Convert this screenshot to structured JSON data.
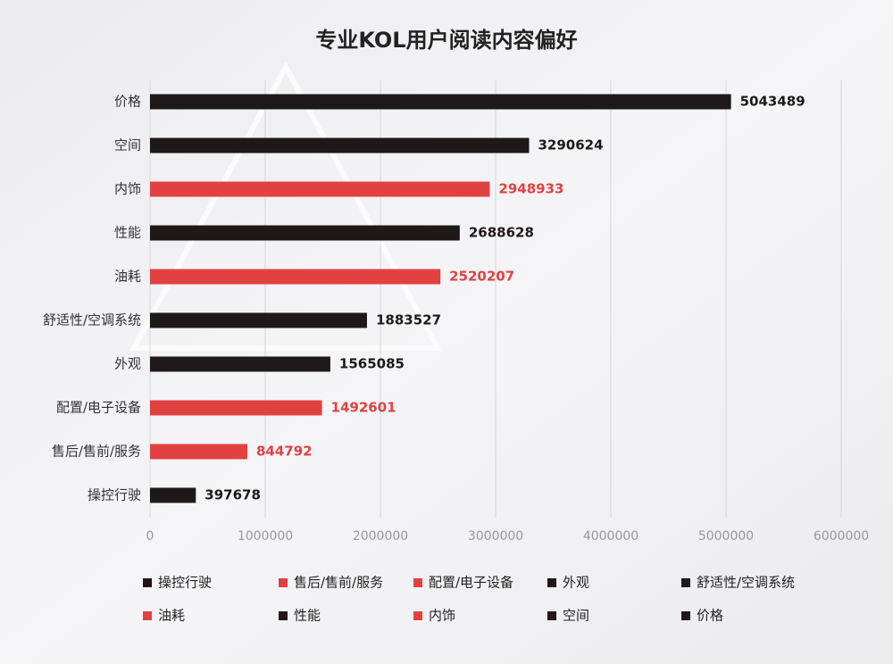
{
  "chart_data": {
    "type": "bar",
    "orientation": "horizontal",
    "title": "专业KOL用户阅读内容偏好",
    "categories": [
      "价格",
      "空间",
      "内饰",
      "性能",
      "油耗",
      "舒适性/空调系统",
      "外观",
      "配置/电子设备",
      "售后/售前/服务",
      "操控行驶"
    ],
    "values": [
      5043489,
      3290624,
      2948933,
      2688628,
      2520207,
      1883527,
      1565085,
      1492601,
      844792,
      397678
    ],
    "colors": [
      "#1e1818",
      "#1e1818",
      "#e24141",
      "#1e1818",
      "#e24141",
      "#1e1818",
      "#1e1818",
      "#e24141",
      "#e24141",
      "#1e1818"
    ],
    "xlim": [
      0,
      6000000
    ],
    "xticks": [
      0,
      1000000,
      2000000,
      3000000,
      4000000,
      5000000,
      6000000
    ],
    "grid": true,
    "legend": "bottom"
  }
}
